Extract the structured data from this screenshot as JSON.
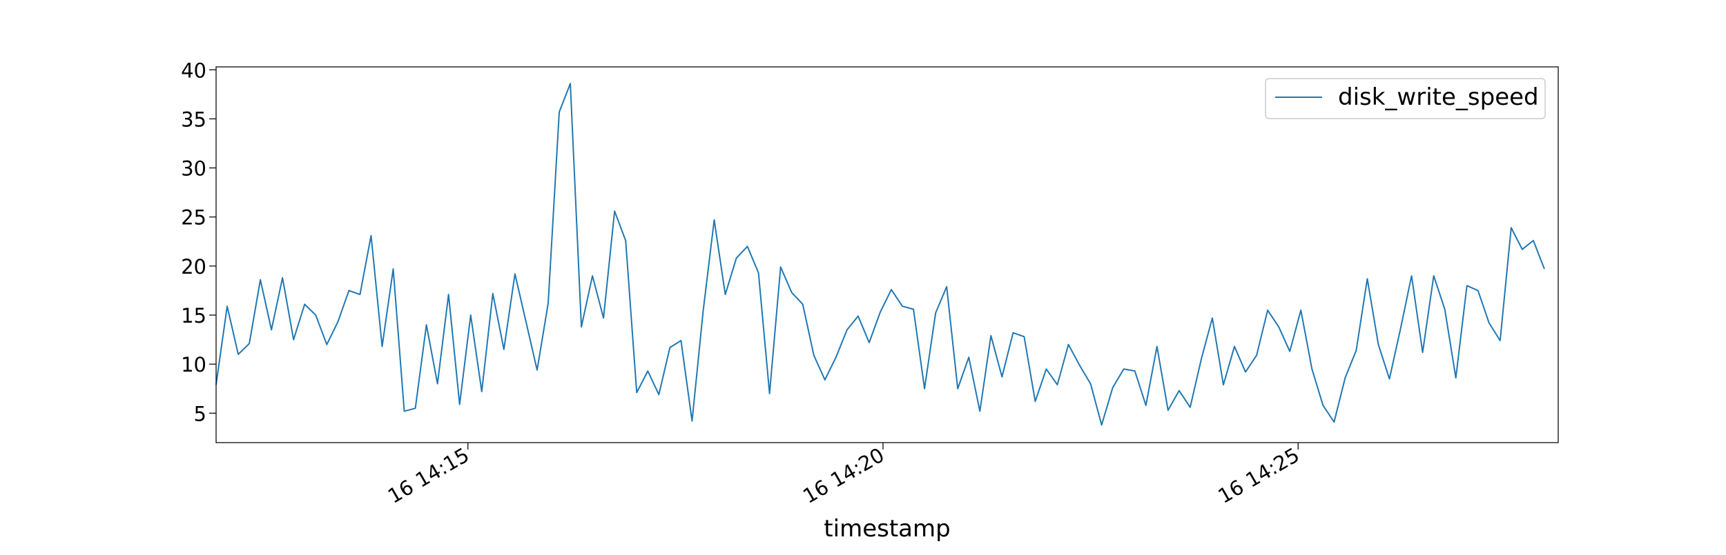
{
  "chart_data": {
    "type": "line",
    "xlabel": "timestamp",
    "ylabel": "",
    "title": "",
    "x_tick_labels": [
      "16 14:15",
      "16 14:20",
      "16 14:25"
    ],
    "y_ticks": [
      5,
      10,
      15,
      20,
      25,
      30,
      35,
      40
    ],
    "ylim": [
      2.0,
      40.3
    ],
    "xlim": [
      "14:11:58",
      "14:28:08"
    ],
    "legend": {
      "position": "top-right",
      "entries": [
        "disk_write_speed"
      ]
    },
    "grid": false,
    "series": [
      {
        "name": "disk_write_speed",
        "color": "#1f77b4",
        "x_start": "14:11:58",
        "x_step_seconds": 8,
        "values": [
          7.9,
          15.9,
          11.0,
          12.1,
          18.6,
          13.5,
          18.8,
          12.5,
          16.1,
          15.0,
          12.0,
          14.3,
          17.5,
          17.1,
          23.1,
          11.8,
          19.7,
          5.2,
          5.5,
          14.0,
          8.0,
          17.1,
          5.9,
          15.0,
          7.2,
          17.2,
          11.5,
          19.2,
          14.3,
          9.4,
          16.2,
          35.7,
          38.6,
          13.8,
          19.0,
          14.7,
          25.6,
          22.6,
          7.1,
          9.3,
          6.9,
          11.7,
          12.4,
          4.2,
          15.4,
          24.7,
          17.1,
          20.8,
          22.0,
          19.3,
          7.0,
          19.9,
          17.3,
          16.1,
          10.9,
          8.4,
          10.7,
          13.5,
          14.9,
          12.2,
          15.3,
          17.6,
          15.9,
          15.6,
          7.5,
          15.2,
          17.9,
          7.5,
          10.7,
          5.2,
          12.9,
          8.7,
          13.2,
          12.8,
          6.2,
          9.5,
          7.9,
          12.0,
          9.9,
          8.0,
          3.8,
          7.6,
          9.5,
          9.3,
          5.8,
          11.8,
          5.3,
          7.3,
          5.6,
          10.5,
          14.7,
          7.9,
          11.8,
          9.2,
          10.9,
          15.5,
          13.8,
          11.3,
          15.5,
          9.5,
          5.8,
          4.1,
          8.6,
          11.4,
          18.7,
          12.0,
          8.5,
          13.6,
          19.0,
          11.2,
          19.0,
          15.6,
          8.6,
          18.0,
          17.5,
          14.2,
          12.4,
          23.9,
          21.7,
          22.6,
          19.7
        ]
      }
    ]
  }
}
